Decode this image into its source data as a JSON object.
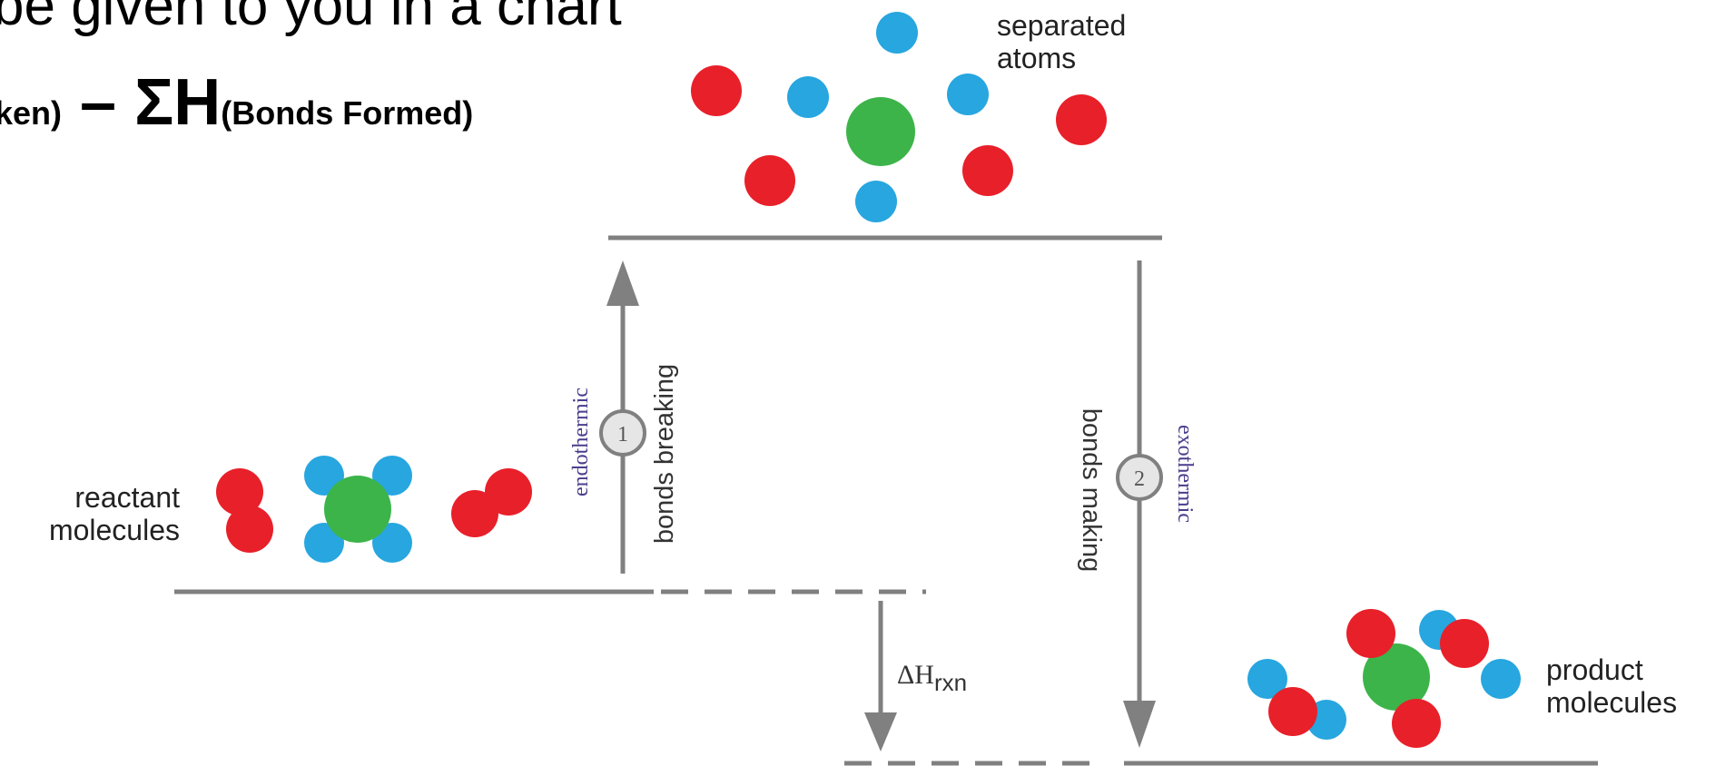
{
  "slide": {
    "headline": "be given to you in a chart",
    "equation": {
      "left_subscript": "ken)",
      "operator": " – ΣH",
      "right_subscript": "(Bonds Formed)"
    }
  },
  "diagram": {
    "labels": {
      "separated_line1": "separated",
      "separated_line2": "atoms",
      "reactant_line1": "reactant",
      "reactant_line2": "molecules",
      "product_line1": "product",
      "product_line2": "molecules"
    },
    "step1": {
      "number": "1",
      "kind": "endothermic",
      "process": "bonds breaking"
    },
    "step2": {
      "number": "2",
      "kind": "exothermic",
      "process": "bonds making"
    },
    "enthalpy": {
      "symbol": "ΔH",
      "subscript": "rxn"
    },
    "colors": {
      "red_atom": "#e8202a",
      "blue_atom": "#27a6df",
      "green_atom": "#3cb44a",
      "line_gray": "#808080",
      "purple_text": "#4b3c8c"
    }
  }
}
